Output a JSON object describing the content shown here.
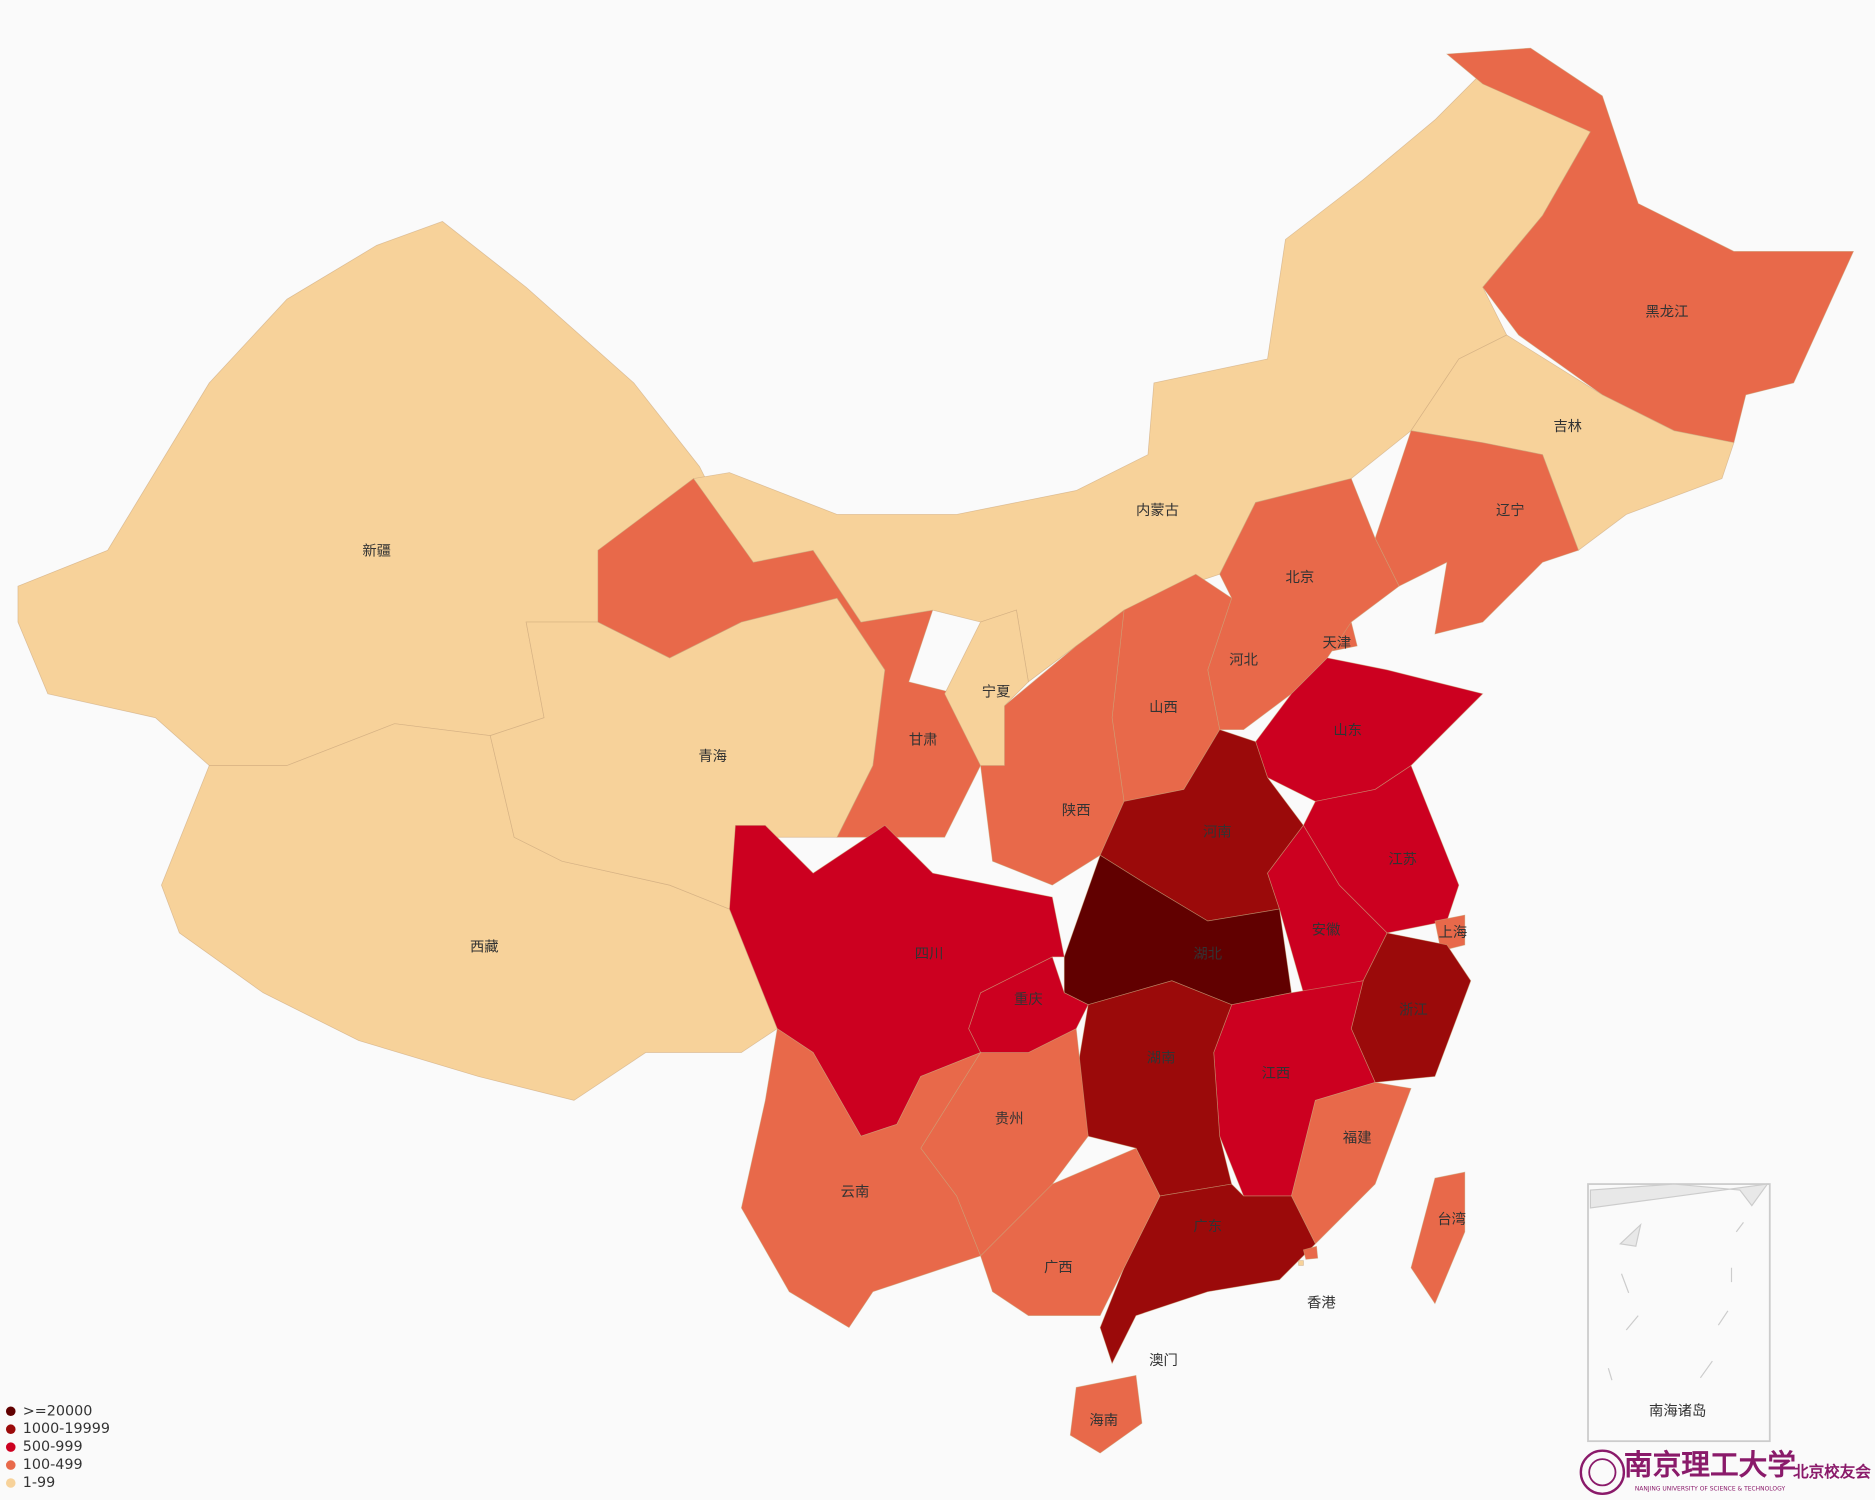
{
  "regions": [
    {
      "name": "新疆",
      "color": "#f7d29a"
    },
    {
      "name": "西藏",
      "color": "#f7d29a"
    },
    {
      "name": "青海",
      "color": "#f7d29a"
    },
    {
      "name": "甘肃",
      "color": "#e8694a"
    },
    {
      "name": "内蒙古",
      "color": "#f7d29a"
    },
    {
      "name": "黑龙江",
      "color": "#e8694a"
    },
    {
      "name": "吉林",
      "color": "#f7d29a"
    },
    {
      "name": "辽宁",
      "color": "#e8694a"
    },
    {
      "name": "北京",
      "color": "#cc0020"
    },
    {
      "name": "天津",
      "color": "#e8694a"
    },
    {
      "name": "河北",
      "color": "#e8694a"
    },
    {
      "name": "山西",
      "color": "#e8694a"
    },
    {
      "name": "陕西",
      "color": "#e8694a"
    },
    {
      "name": "宁夏",
      "color": "#f7d29a"
    },
    {
      "name": "山东",
      "color": "#cc0020"
    },
    {
      "name": "河南",
      "color": "#9b0a0a"
    },
    {
      "name": "江苏",
      "color": "#cc0020"
    },
    {
      "name": "上海",
      "color": "#e8694a"
    },
    {
      "name": "安徽",
      "color": "#cc0020"
    },
    {
      "name": "湖北",
      "color": "#610000"
    },
    {
      "name": "浙江",
      "color": "#9b0a0a"
    },
    {
      "name": "江西",
      "color": "#cc0020"
    },
    {
      "name": "湖南",
      "color": "#9b0a0a"
    },
    {
      "name": "福建",
      "color": "#e8694a"
    },
    {
      "name": "广东",
      "color": "#9b0a0a"
    },
    {
      "name": "广西",
      "color": "#e8694a"
    },
    {
      "name": "贵州",
      "color": "#e8694a"
    },
    {
      "name": "重庆",
      "color": "#cc0020"
    },
    {
      "name": "四川",
      "color": "#cc0020"
    },
    {
      "name": "云南",
      "color": "#e8694a"
    },
    {
      "name": "海南",
      "color": "#e8694a"
    },
    {
      "name": "台湾",
      "color": "#e8694a"
    },
    {
      "name": "香港",
      "color": "#e8694a"
    },
    {
      "name": "澳门",
      "color": "#f7d29a"
    }
  ],
  "legend": [
    {
      "label": ">=20000",
      "color": "#610000"
    },
    {
      "label": "1000-19999",
      "color": "#9b0a0a"
    },
    {
      "label": "500-999",
      "color": "#cc0020"
    },
    {
      "label": "100-499",
      "color": "#e8694a"
    },
    {
      "label": "1-99",
      "color": "#f7d29a"
    }
  ],
  "inset": {
    "label": "南海诸岛"
  },
  "logo": {
    "name": "南京理工大学",
    "subtitle": "NANJING UNIVERSITY OF SCIENCE & TECHNOLOGY",
    "branch": "北京校友会"
  }
}
